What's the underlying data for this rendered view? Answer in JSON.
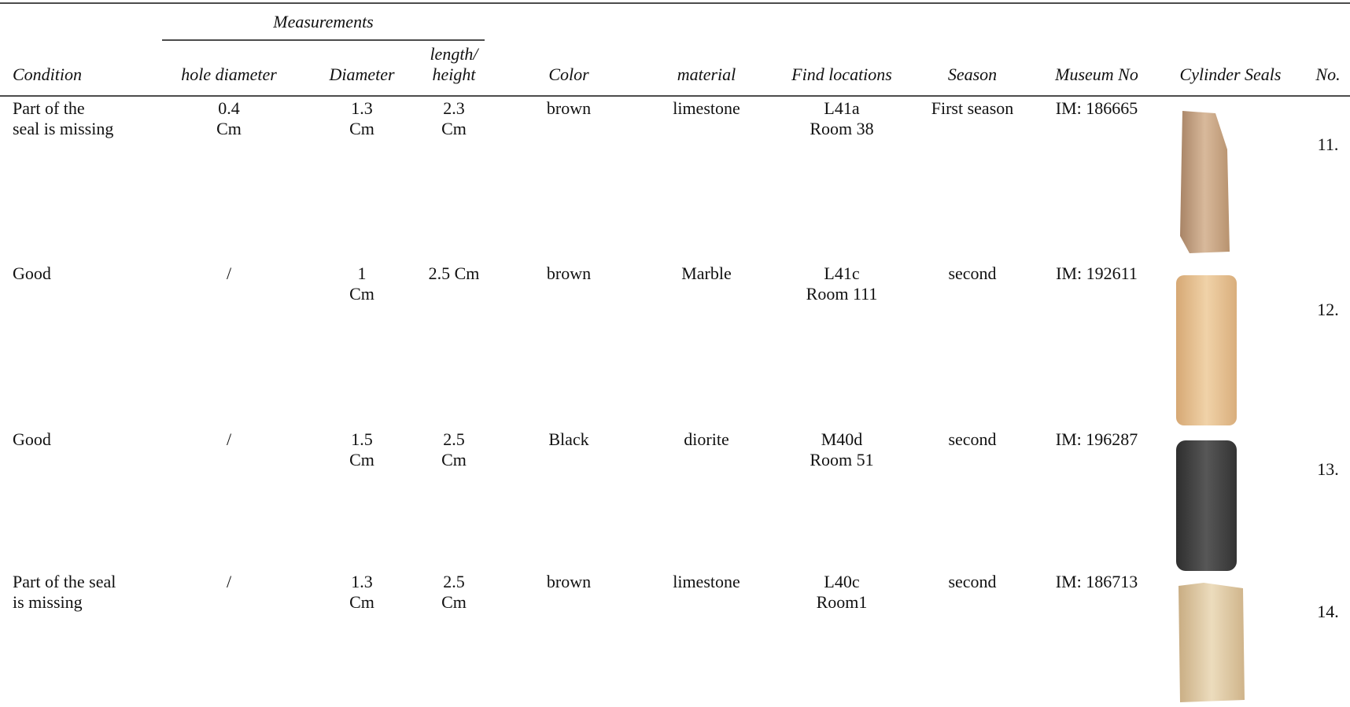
{
  "table": {
    "group_header": "Measurements",
    "columns": {
      "condition": [
        "Condition"
      ],
      "hole_diameter": [
        "hole diameter"
      ],
      "diameter": [
        "Diameter"
      ],
      "length_height": [
        "length/",
        "height"
      ],
      "color": [
        "Color"
      ],
      "material": [
        "material"
      ],
      "find_locations": [
        "Find locations"
      ],
      "season": [
        "Season"
      ],
      "museum_no": [
        "Museum No"
      ],
      "cylinder_seals": [
        "Cylinder Seals"
      ],
      "no": [
        "No."
      ]
    },
    "rows": [
      {
        "condition": [
          "Part of the",
          "seal is missing"
        ],
        "hole_diameter": [
          "0.4",
          "Cm"
        ],
        "diameter": [
          "1.3",
          "Cm"
        ],
        "length_height": [
          "2.3",
          "Cm"
        ],
        "color": [
          "brown"
        ],
        "material": [
          "limestone"
        ],
        "find_locations": [
          "L41a",
          "Room 38"
        ],
        "season": [
          "First season"
        ],
        "museum_no": [
          "IM: 186665"
        ],
        "no": [
          "11."
        ]
      },
      {
        "condition": [
          "Good"
        ],
        "hole_diameter": [
          "/"
        ],
        "diameter": [
          "1",
          "Cm"
        ],
        "length_height": [
          "2.5 Cm"
        ],
        "color": [
          "brown"
        ],
        "material": [
          "Marble"
        ],
        "find_locations": [
          "L41c",
          "Room 111"
        ],
        "season": [
          "second"
        ],
        "museum_no": [
          "IM: 192611"
        ],
        "no": [
          "12."
        ]
      },
      {
        "condition": [
          "Good"
        ],
        "hole_diameter": [
          "/"
        ],
        "diameter": [
          "1.5",
          "Cm"
        ],
        "length_height": [
          "2.5",
          "Cm"
        ],
        "color": [
          "Black"
        ],
        "material": [
          "diorite"
        ],
        "find_locations": [
          "M40d",
          "Room 51"
        ],
        "season": [
          "second"
        ],
        "museum_no": [
          "IM: 196287"
        ],
        "no": [
          "13."
        ]
      },
      {
        "condition": [
          "Part of the seal",
          "is missing"
        ],
        "hole_diameter": [
          "/"
        ],
        "diameter": [
          "1.3",
          "Cm"
        ],
        "length_height": [
          "2.5",
          "Cm"
        ],
        "color": [
          "brown"
        ],
        "material": [
          "limestone"
        ],
        "find_locations": [
          "L40c",
          "Room1"
        ],
        "season": [
          "second"
        ],
        "museum_no": [
          "IM: 186713"
        ],
        "no": [
          "14."
        ]
      }
    ]
  }
}
